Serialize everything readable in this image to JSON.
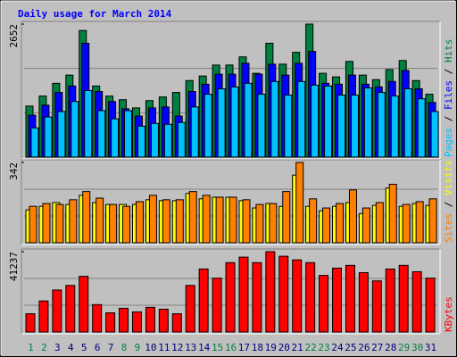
{
  "chart_data": [
    {
      "type": "bar",
      "title": "Daily usage for March 2014",
      "ylim": [
        0,
        2652
      ],
      "yticks": [
        2652
      ],
      "grid": true,
      "legend_separator": " / ",
      "series": [
        {
          "name": "Pages",
          "color": "#00c0ff",
          "values": [
            581,
            799,
            908,
            1108,
            1326,
            926,
            763,
            926,
            617,
            672,
            654,
            690,
            999,
            1253,
            1362,
            1398,
            1471,
            1253,
            1507,
            1235,
            1507,
            1435,
            1416,
            1235,
            1235,
            1380,
            1289,
            1217,
            1362,
            1162,
            908
          ]
        },
        {
          "name": "Files",
          "color": "#0000ff",
          "values": [
            835,
            1035,
            1290,
            1417,
            2270,
            1308,
            1108,
            963,
            817,
            981,
            999,
            817,
            1308,
            1453,
            1653,
            1653,
            1871,
            1653,
            1853,
            1635,
            1871,
            2107,
            1471,
            1453,
            1635,
            1453,
            1399,
            1508,
            1726,
            1362,
            1090
          ]
        },
        {
          "name": "Hits",
          "color": "#008040",
          "values": [
            1017,
            1217,
            1471,
            1635,
            2525,
            1417,
            1217,
            1144,
            981,
            1126,
            1199,
            1290,
            1526,
            1617,
            1835,
            1835,
            1998,
            1671,
            2270,
            1853,
            2089,
            2652,
            1671,
            1599,
            1907,
            1635,
            1544,
            1744,
            1925,
            1526,
            1253
          ]
        }
      ]
    },
    {
      "type": "bar",
      "ylim": [
        0,
        342
      ],
      "yticks": [
        342
      ],
      "grid": true,
      "legend_separator": " / ",
      "series": [
        {
          "name": "Sites",
          "color": "#ff8000",
          "values": [
            155,
            167,
            163,
            183,
            218,
            190,
            163,
            155,
            175,
            202,
            183,
            183,
            218,
            202,
            194,
            194,
            183,
            163,
            167,
            218,
            342,
            187,
            148,
            167,
            225,
            148,
            171,
            249,
            163,
            175,
            187
          ]
        },
        {
          "name": "Visits",
          "color": "#ffff00",
          "values": [
            140,
            155,
            171,
            163,
            202,
            171,
            163,
            163,
            163,
            183,
            179,
            179,
            210,
            187,
            194,
            194,
            179,
            148,
            167,
            155,
            288,
            155,
            136,
            155,
            171,
            124,
            159,
            233,
            155,
            167,
            159
          ]
        }
      ]
    },
    {
      "type": "bar",
      "ylim": [
        0,
        41237
      ],
      "yticks": [
        41237
      ],
      "grid": true,
      "categories": [
        "1",
        "2",
        "3",
        "4",
        "5",
        "6",
        "7",
        "8",
        "9",
        "10",
        "11",
        "12",
        "13",
        "14",
        "15",
        "16",
        "17",
        "18",
        "19",
        "20",
        "21",
        "22",
        "23",
        "24",
        "25",
        "26",
        "27",
        "28",
        "29",
        "30",
        "31"
      ],
      "label_colors": [
        "#008040",
        "#008040",
        "#000080",
        "#000080",
        "#000080",
        "#000080",
        "#000080",
        "#008040",
        "#008040",
        "#000080",
        "#000080",
        "#000080",
        "#000080",
        "#000080",
        "#008040",
        "#008040",
        "#000080",
        "#000080",
        "#000080",
        "#000080",
        "#000080",
        "#008040",
        "#008040",
        "#000080",
        "#000080",
        "#000080",
        "#000080",
        "#000080",
        "#008040",
        "#008040",
        "#000080"
      ],
      "series": [
        {
          "name": "KBytes",
          "color": "#ff0000",
          "values": [
            9372,
            15932,
            21556,
            23899,
            28585,
            14058,
            9841,
            12184,
            10309,
            12652,
            11715,
            9372,
            23899,
            32333,
            27647,
            35614,
            38425,
            35614,
            41237,
            38894,
            37019,
            35614,
            29053,
            32802,
            34208,
            30459,
            26242,
            32333,
            34208,
            30928,
            27647
          ]
        }
      ]
    }
  ]
}
